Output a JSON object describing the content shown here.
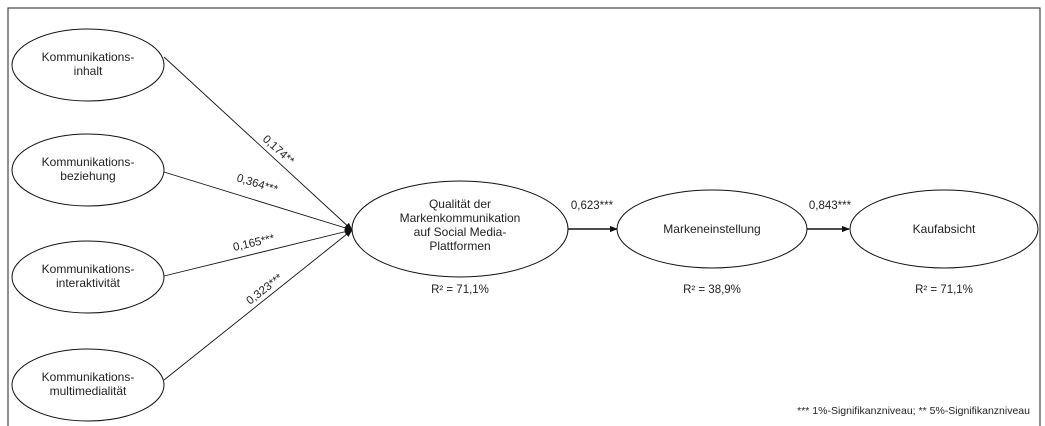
{
  "diagram": {
    "inputs": [
      {
        "lines": [
          "Kommunikations-",
          "inhalt"
        ],
        "coefficient": "0,174**"
      },
      {
        "lines": [
          "Kommunikations-",
          "beziehung"
        ],
        "coefficient": "0,364***"
      },
      {
        "lines": [
          "Kommunikations-",
          "interaktivität"
        ],
        "coefficient": "0,165***"
      },
      {
        "lines": [
          "Kommunikations-",
          "multimedialität"
        ],
        "coefficient": "0,323***"
      }
    ],
    "quality": {
      "lines": [
        "Qualität der",
        "Markenkommunikation",
        "auf Social Media-",
        "Plattformen"
      ],
      "r2": "R² = 71,1%"
    },
    "attitude": {
      "lines": [
        "Markeneinstellung"
      ],
      "r2": "R² = 38,9%"
    },
    "intention": {
      "lines": [
        "Kaufabsicht"
      ],
      "r2": "R² = 71,1%"
    },
    "paths": {
      "quality_to_attitude": "0,623***",
      "attitude_to_intention": "0,843***"
    },
    "footnote": "*** 1%-Signifikanzniveau; ** 5%-Signifikanzniveau"
  }
}
